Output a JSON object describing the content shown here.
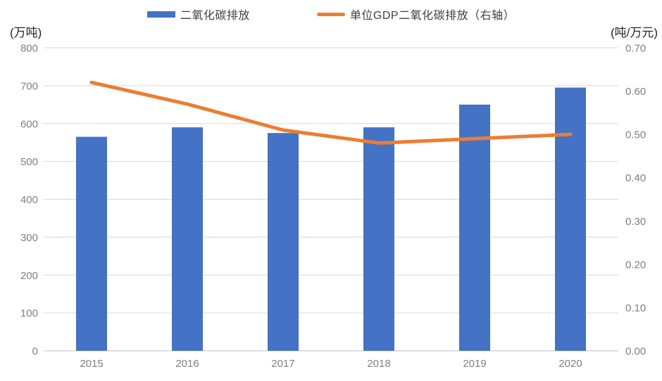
{
  "chart_data": {
    "type": "combo",
    "title": "",
    "categories": [
      "2015",
      "2016",
      "2017",
      "2018",
      "2019",
      "2020"
    ],
    "series": [
      {
        "name": "二氧化碳排放",
        "type": "bar",
        "axis": "left",
        "color": "#4472C4",
        "values": [
          565,
          590,
          575,
          590,
          650,
          695
        ]
      },
      {
        "name": "单位GDP二氧化碳排放（右轴）",
        "type": "line",
        "axis": "right",
        "color": "#ED7D31",
        "values": [
          0.62,
          0.57,
          0.51,
          0.48,
          0.49,
          0.5
        ]
      }
    ],
    "left_axis": {
      "title": "(万吨)",
      "min": 0,
      "max": 800,
      "step": 100,
      "tick_labels": [
        "800",
        "700",
        "600",
        "500",
        "400",
        "300",
        "200",
        "100",
        "0"
      ]
    },
    "right_axis": {
      "title": "(吨/万元)",
      "min": 0,
      "max": 0.7,
      "step": 0.1,
      "tick_labels": [
        "0.70",
        "0.60",
        "0.50",
        "0.40",
        "0.30",
        "0.20",
        "0.10",
        "0.00"
      ]
    },
    "grid": true,
    "legend_position": "top"
  },
  "colors": {
    "bar": "#4472C4",
    "line": "#ED7D31",
    "gridline": "#D9D9D9",
    "axis_line": "#BFBFBF",
    "tick_text": "#808080",
    "legend_text": "#404040",
    "axis_title_text": "#262626"
  }
}
